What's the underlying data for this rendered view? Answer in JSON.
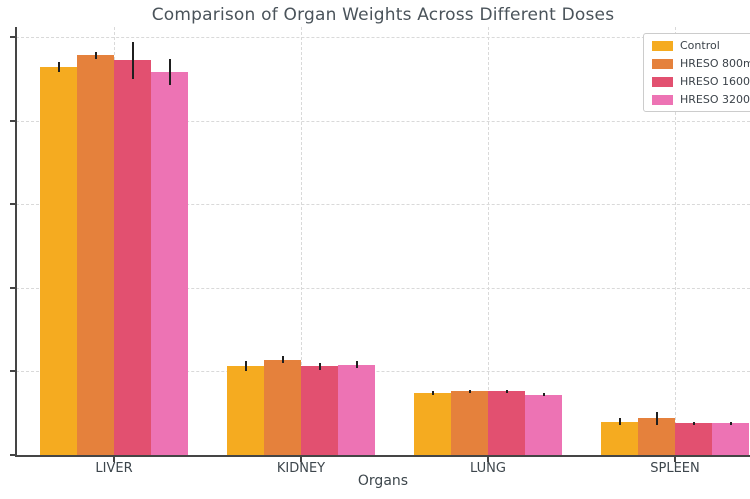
{
  "title": "Comparison of Organ Weights Across Different Doses",
  "axes": {
    "xlabel": "Organs",
    "x_tick_labels": [
      "LIVER",
      "KIDNEY",
      "LUNG",
      "SPLEEN"
    ]
  },
  "legend": {
    "items": [
      {
        "label": "Control",
        "color": "#F5AB20"
      },
      {
        "label": "HRESO 800m",
        "color": "#E5813C"
      },
      {
        "label": "HRESO 1600",
        "color": "#E25070"
      },
      {
        "label": "HRESO 3200",
        "color": "#ED73B4"
      }
    ]
  },
  "chart_data": {
    "type": "bar",
    "title": "Comparison of Organ Weights Across Different Doses",
    "xlabel": "Organs",
    "ylabel": "",
    "categories": [
      "LIVER",
      "KIDNEY",
      "LUNG",
      "SPLEEN"
    ],
    "series": [
      {
        "name": "Control",
        "color": "#F5AB20",
        "values": [
          2.32,
          0.53,
          0.37,
          0.2
        ],
        "errors": [
          0.03,
          0.03,
          0.01,
          0.02
        ]
      },
      {
        "name": "HRESO 800m",
        "color": "#E5813C",
        "values": [
          2.39,
          0.57,
          0.38,
          0.22
        ],
        "errors": [
          0.02,
          0.02,
          0.01,
          0.04
        ]
      },
      {
        "name": "HRESO 1600",
        "color": "#E25070",
        "values": [
          2.36,
          0.53,
          0.38,
          0.19
        ],
        "errors": [
          0.11,
          0.02,
          0.01,
          0.01
        ]
      },
      {
        "name": "HRESO 3200",
        "color": "#ED73B4",
        "values": [
          2.29,
          0.54,
          0.36,
          0.19
        ],
        "errors": [
          0.08,
          0.02,
          0.01,
          0.01
        ]
      }
    ],
    "ylim": [
      0,
      2.6
    ],
    "yticks": [
      0,
      0.5,
      1.0,
      1.5,
      2.0,
      2.5
    ],
    "ytick_labels_visible": false,
    "grid": true,
    "grid_style": "dashed",
    "error_bars": true,
    "legend_position": "upper right"
  }
}
